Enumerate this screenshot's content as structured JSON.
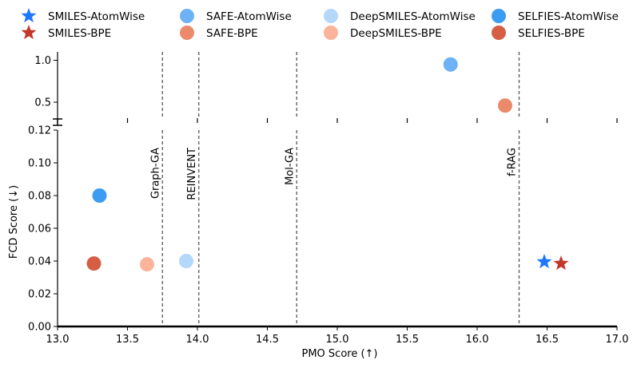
{
  "chart_data": {
    "type": "scatter",
    "xlabel": "PMO Score (↑)",
    "ylabel": "FCD Score (↓)",
    "xlim": [
      13.0,
      17.0
    ],
    "x_ticks": [
      "13.0",
      "13.5",
      "14.0",
      "14.5",
      "15.0",
      "15.5",
      "16.0",
      "16.5",
      "17.0"
    ],
    "upper_panel": {
      "ylim": [
        0.3,
        1.1
      ],
      "y_ticks": [
        "0.5",
        "1.0"
      ]
    },
    "lower_panel": {
      "ylim": [
        0.0,
        0.12
      ],
      "y_ticks": [
        "0.00",
        "0.02",
        "0.04",
        "0.06",
        "0.08",
        "0.10",
        "0.12"
      ]
    },
    "broken_axis": true,
    "legend": {
      "placement": "top",
      "entries": [
        {
          "label": "SMILES-AtomWise",
          "marker": "star",
          "color": "#1f77ff"
        },
        {
          "label": "SMILES-BPE",
          "marker": "star",
          "color": "#c0392b"
        },
        {
          "label": "SAFE-AtomWise",
          "marker": "circle",
          "color": "#6cb2f5"
        },
        {
          "label": "SAFE-BPE",
          "marker": "circle",
          "color": "#ea8a6b"
        },
        {
          "label": "DeepSMILES-AtomWise",
          "marker": "circle",
          "color": "#b3d8fa"
        },
        {
          "label": "DeepSMILES-BPE",
          "marker": "circle",
          "color": "#fbb39a"
        },
        {
          "label": "SELFIES-AtomWise",
          "marker": "circle",
          "color": "#3c9cf2"
        },
        {
          "label": "SELFIES-BPE",
          "marker": "circle",
          "color": "#d65e45"
        }
      ]
    },
    "points": [
      {
        "series": "SAFE-AtomWise",
        "x": 15.81,
        "y": 0.95,
        "marker": "circle",
        "color": "#6cb2f5"
      },
      {
        "series": "SAFE-BPE",
        "x": 16.2,
        "y": 0.46,
        "marker": "circle",
        "color": "#ea8a6b"
      },
      {
        "series": "SELFIES-AtomWise",
        "x": 13.3,
        "y": 0.08,
        "marker": "circle",
        "color": "#3c9cf2"
      },
      {
        "series": "SELFIES-BPE",
        "x": 13.26,
        "y": 0.0385,
        "marker": "circle",
        "color": "#d65e45"
      },
      {
        "series": "DeepSMILES-BPE",
        "x": 13.64,
        "y": 0.038,
        "marker": "circle",
        "color": "#fbb39a"
      },
      {
        "series": "DeepSMILES-AtomWise",
        "x": 13.92,
        "y": 0.04,
        "marker": "circle",
        "color": "#b3d8fa"
      },
      {
        "series": "SMILES-AtomWise",
        "x": 16.48,
        "y": 0.0395,
        "marker": "star",
        "color": "#1f77ff"
      },
      {
        "series": "SMILES-BPE",
        "x": 16.6,
        "y": 0.0385,
        "marker": "star",
        "color": "#c0392b"
      }
    ],
    "reference_lines": [
      {
        "label": "Graph-GA",
        "x": 13.75
      },
      {
        "label": "REINVENT",
        "x": 14.01
      },
      {
        "label": "Mol-GA",
        "x": 14.71
      },
      {
        "label": "f-RAG",
        "x": 16.3
      }
    ]
  }
}
